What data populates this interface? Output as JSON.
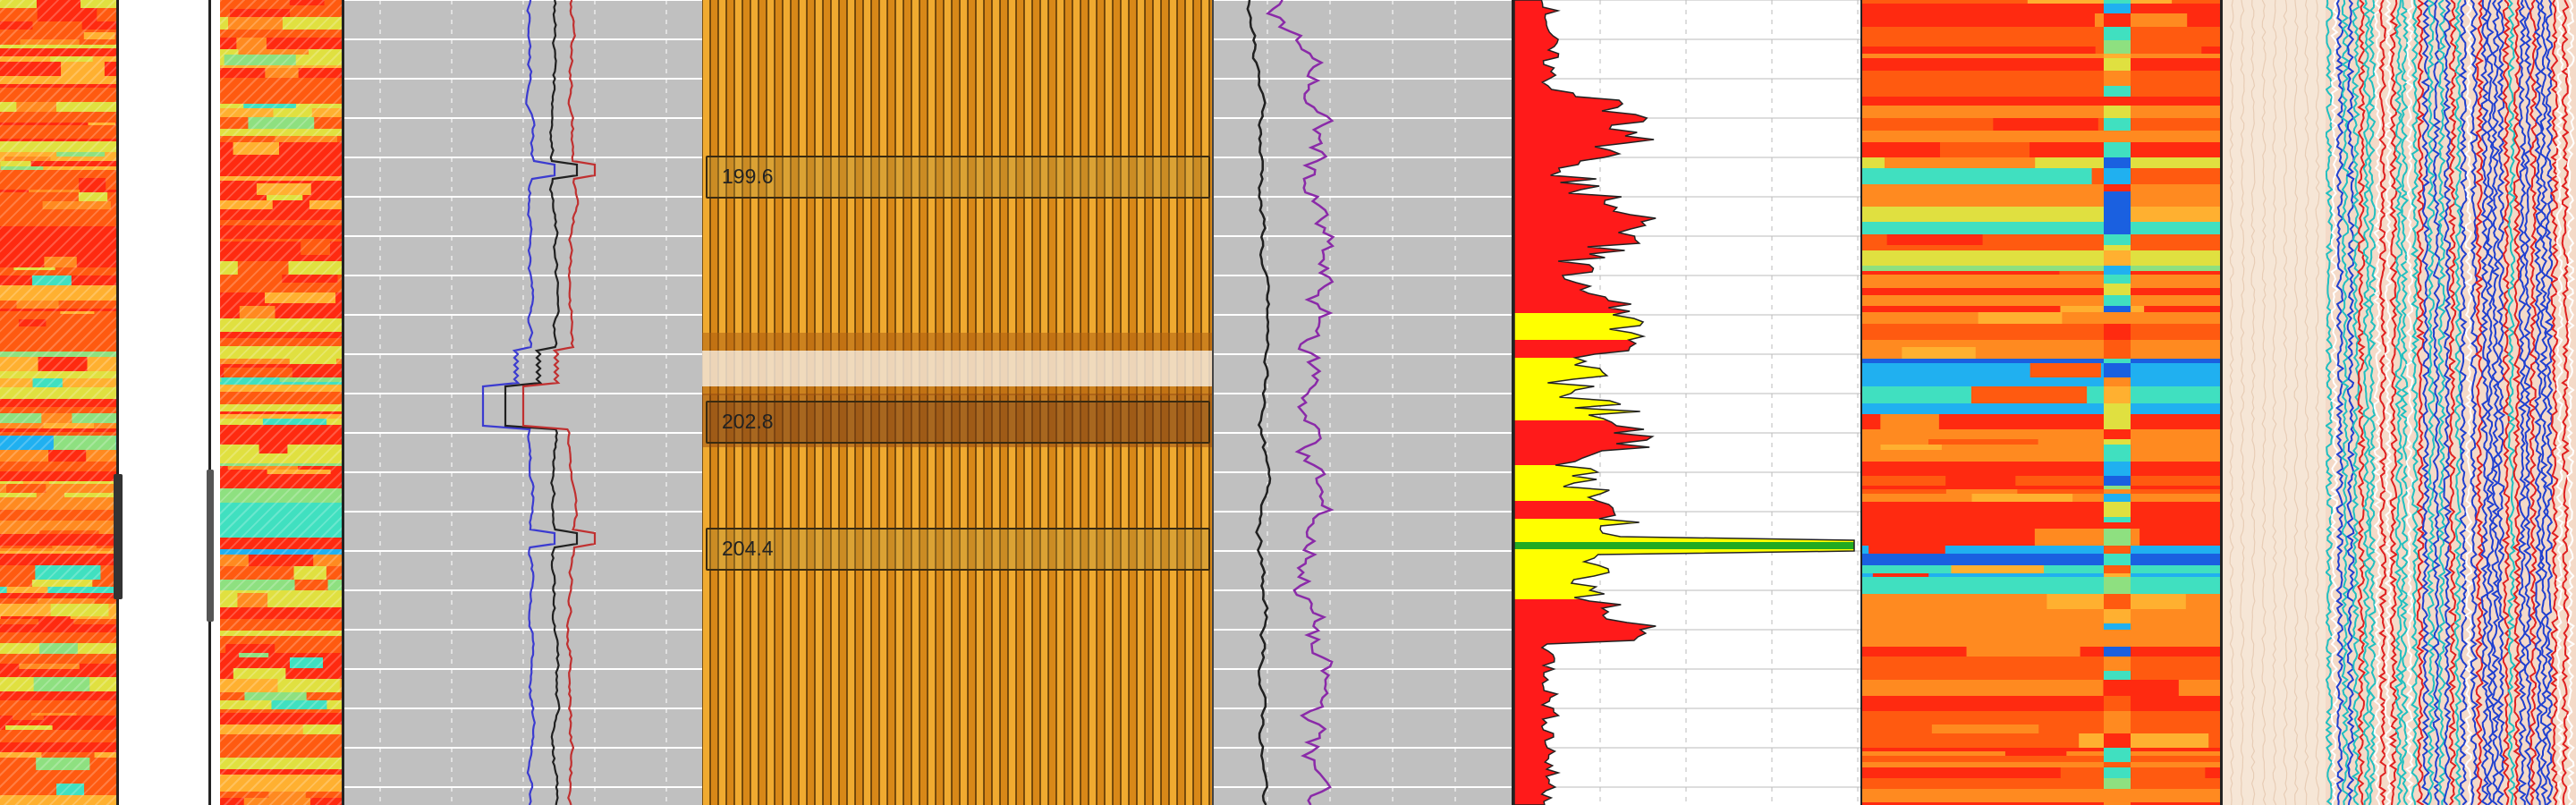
{
  "depth_markers": [
    {
      "label": "199.6"
    },
    {
      "label": "202.8"
    },
    {
      "label": "204.4"
    }
  ],
  "colors": {
    "curve_blue": "#3b3bd0",
    "curve_black": "#202020",
    "curve_red": "#c03030",
    "curve_purple": "#8a2aa8",
    "fill_red": "#ff1a1a",
    "fill_yellow": "#ffff00",
    "fill_green": "#22aa22",
    "track_gray": "#c0c0c0",
    "track_amber": "#e8a020",
    "track_peach": "#f6e6d6"
  },
  "icons": {
    "scroll_handle": "scroll-handle-icon"
  }
}
